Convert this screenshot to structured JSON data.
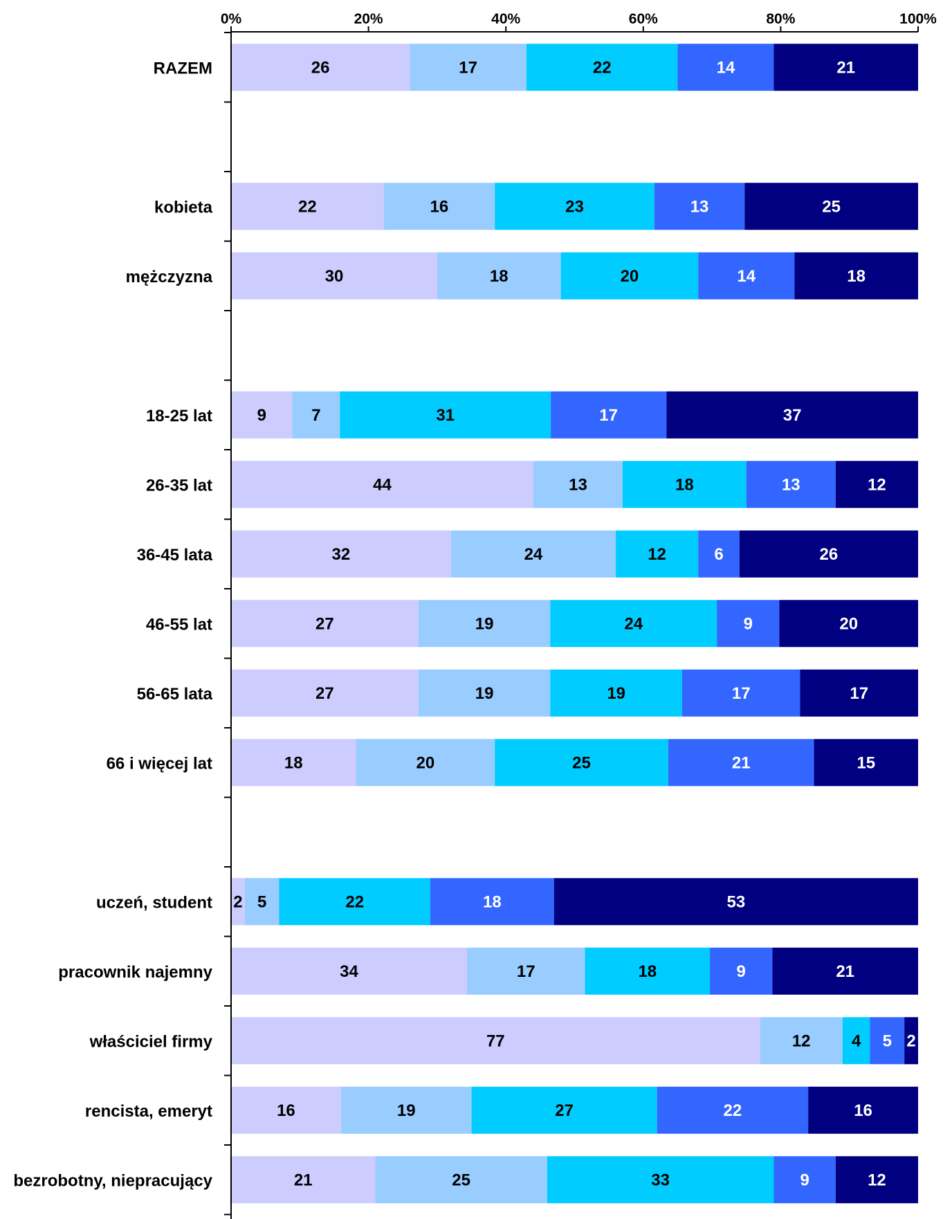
{
  "chart_data": {
    "type": "bar",
    "orientation": "horizontal",
    "stacked": true,
    "percent": true,
    "title": "",
    "xlabel": "",
    "ylabel": "",
    "xlim": [
      0,
      100
    ],
    "x_ticks": [
      "0%",
      "20%",
      "40%",
      "60%",
      "80%",
      "100%"
    ],
    "grid": false,
    "legend": "none",
    "series_colors": [
      "#ccccff",
      "#99ccff",
      "#00ccff",
      "#3366ff",
      "#000080"
    ],
    "label_colors": [
      "#000000",
      "#000000",
      "#000000",
      "#ffffff",
      "#ffffff"
    ],
    "rows": [
      {
        "category": "RAZEM",
        "values": [
          26,
          17,
          22,
          14,
          21
        ]
      },
      {
        "category": "",
        "values": []
      },
      {
        "category": "kobieta",
        "values": [
          22,
          16,
          23,
          13,
          25
        ]
      },
      {
        "category": "mężczyzna",
        "values": [
          30,
          18,
          20,
          14,
          18
        ]
      },
      {
        "category": "",
        "values": []
      },
      {
        "category": "18-25 lat",
        "values": [
          9,
          7,
          31,
          17,
          37
        ]
      },
      {
        "category": "26-35 lat",
        "values": [
          44,
          13,
          18,
          13,
          12
        ]
      },
      {
        "category": "36-45 lata",
        "values": [
          32,
          24,
          12,
          6,
          26
        ]
      },
      {
        "category": "46-55 lat",
        "values": [
          27,
          19,
          24,
          9,
          20
        ]
      },
      {
        "category": "56-65 lata",
        "values": [
          27,
          19,
          19,
          17,
          17
        ]
      },
      {
        "category": "66 i więcej lat",
        "values": [
          18,
          20,
          25,
          21,
          15
        ]
      },
      {
        "category": "",
        "values": []
      },
      {
        "category": "uczeń, student",
        "values": [
          2,
          5,
          22,
          18,
          53
        ]
      },
      {
        "category": "pracownik najemny",
        "values": [
          34,
          17,
          18,
          9,
          21
        ]
      },
      {
        "category": "właściciel firmy",
        "values": [
          77,
          12,
          4,
          5,
          2
        ]
      },
      {
        "category": "rencista, emeryt",
        "values": [
          16,
          19,
          27,
          22,
          16
        ]
      },
      {
        "category": "bezrobotny, niepracujący",
        "values": [
          21,
          25,
          33,
          9,
          12
        ]
      }
    ]
  }
}
